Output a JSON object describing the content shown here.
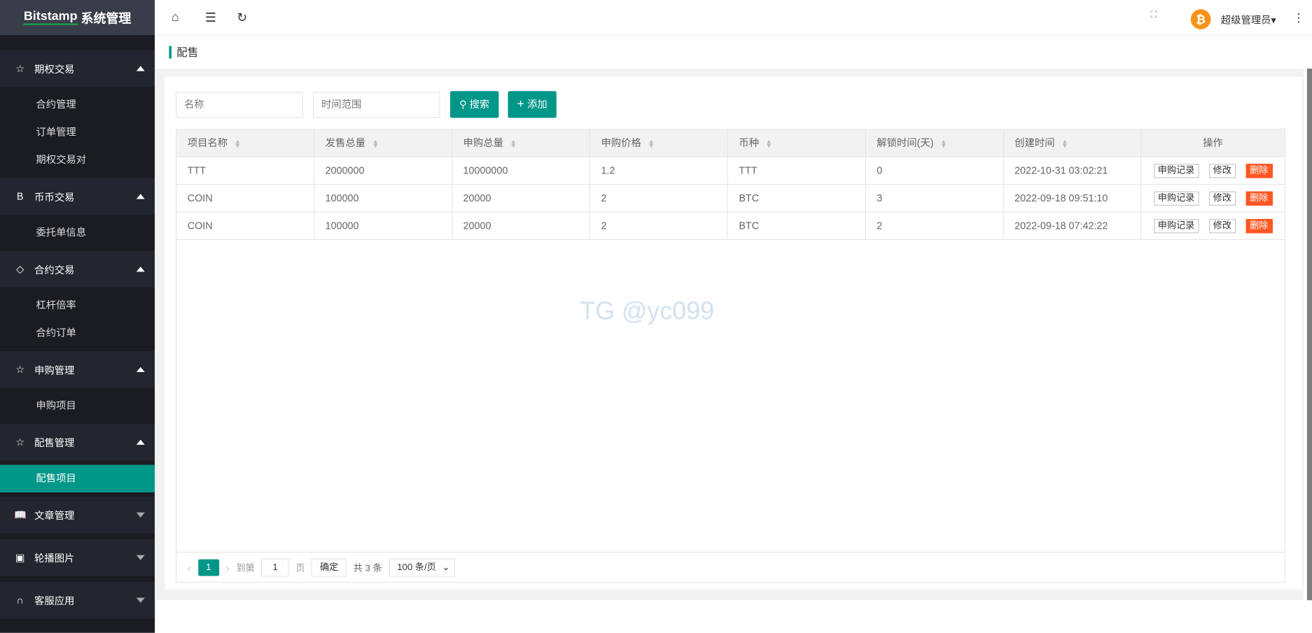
{
  "app": {
    "title": "Bitstamp 系统管理",
    "title_brand": "Bitstamp",
    "title_suffix": "系统管理"
  },
  "sidebar": {
    "groups": [
      {
        "label": "期权交易",
        "icon": "star-icon",
        "expanded": true,
        "items": [
          "合约管理",
          "订单管理",
          "期权交易对"
        ]
      },
      {
        "label": "币币交易",
        "icon": "b-icon",
        "expanded": true,
        "items": [
          "委托单信息"
        ]
      },
      {
        "label": "合约交易",
        "icon": "diamond-icon",
        "expanded": true,
        "items": [
          "杠杆倍率",
          "合约订单"
        ]
      },
      {
        "label": "申购管理",
        "icon": "star-icon",
        "expanded": true,
        "items": [
          "申购项目"
        ]
      },
      {
        "label": "配售管理",
        "icon": "star-icon",
        "expanded": true,
        "items": [
          "配售项目"
        ]
      },
      {
        "label": "文章管理",
        "icon": "book-icon",
        "expanded": false,
        "items": []
      },
      {
        "label": "轮播图片",
        "icon": "image-icon",
        "expanded": false,
        "items": []
      },
      {
        "label": "客服应用",
        "icon": "headset-icon",
        "expanded": false,
        "items": []
      }
    ],
    "active": "配售项目"
  },
  "header": {
    "user": "超级管理员",
    "avatar_icon": "bitcoin-icon"
  },
  "breadcrumb": "配售",
  "filters": {
    "name_placeholder": "名称",
    "time_placeholder": "时间范围",
    "search": "搜索",
    "add": "添加"
  },
  "table": {
    "headers": [
      "项目名称",
      "发售总量",
      "申购总量",
      "申购价格",
      "币种",
      "解锁时间(天)",
      "创建时间",
      "操作"
    ],
    "rows": [
      [
        "TTT",
        "2000000",
        "10000000",
        "1.2",
        "TTT",
        "0",
        "2022-10-31 03:02:21"
      ],
      [
        "COIN",
        "100000",
        "20000",
        "2",
        "BTC",
        "3",
        "2022-09-18 09:51:10"
      ],
      [
        "COIN",
        "100000",
        "20000",
        "2",
        "BTC",
        "2",
        "2022-09-18 07:42:22"
      ]
    ],
    "actions": {
      "records": "申购记录",
      "edit": "修改",
      "delete": "删除"
    }
  },
  "pagination": {
    "current": "1",
    "goto_label": "到第",
    "page_value": "1",
    "page_unit": "页",
    "confirm": "确定",
    "total": "共 3 条",
    "page_size": "100 条/页"
  },
  "watermark": "TG @yc099",
  "colors": {
    "accent": "#009688",
    "danger": "#ff5722",
    "sidebar": "#1b1c21"
  }
}
